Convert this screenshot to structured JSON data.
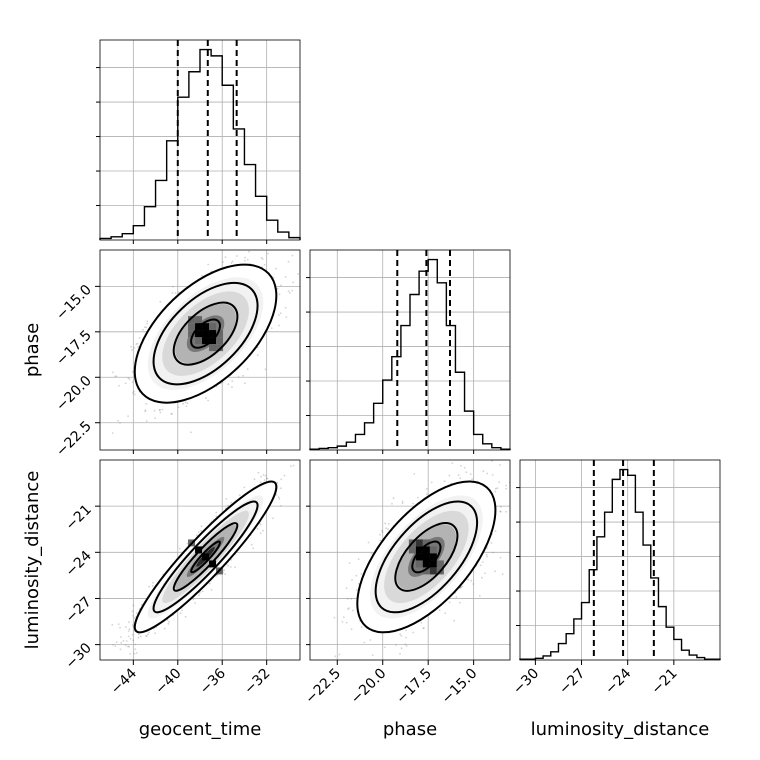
{
  "chart_data": {
    "type": "corner",
    "parameters": [
      "geocent_time",
      "phase",
      "luminosity_distance"
    ],
    "grid": true,
    "panels": {
      "hist_geocent_time": {
        "type": "histogram",
        "param": "geocent_time",
        "xlim": [
          -47,
          -29
        ],
        "bins": [
          -47,
          -46,
          -45,
          -44,
          -43,
          -42,
          -41,
          -40,
          -39,
          -38,
          -37,
          -36,
          -35,
          -34,
          -33,
          -32,
          -31,
          -30,
          -29
        ],
        "counts": [
          2,
          4,
          8,
          18,
          42,
          75,
          125,
          180,
          212,
          240,
          232,
          195,
          140,
          95,
          55,
          25,
          10,
          3
        ],
        "quantiles": [
          -40.0,
          -37.3,
          -34.7
        ]
      },
      "hist_phase": {
        "type": "histogram",
        "param": "phase",
        "xlim": [
          -24,
          -13
        ],
        "bins": [
          -24,
          -23.5,
          -23,
          -22.5,
          -22,
          -21.5,
          -21,
          -20.5,
          -20,
          -19.5,
          -19,
          -18.5,
          -18,
          -17.5,
          -17,
          -16.5,
          -16,
          -15.5,
          -15,
          -14.5,
          -14,
          -13.5,
          -13
        ],
        "counts": [
          1,
          2,
          3,
          5,
          10,
          20,
          35,
          60,
          90,
          120,
          160,
          200,
          230,
          245,
          215,
          160,
          100,
          50,
          20,
          8,
          3,
          1
        ],
        "quantiles": [
          -19.2,
          -17.6,
          -16.3
        ]
      },
      "hist_luminosity_distance": {
        "type": "histogram",
        "param": "luminosity_distance",
        "xlim": [
          -31,
          -18
        ],
        "bins": [
          -31,
          -30.5,
          -30,
          -29.5,
          -29,
          -28.5,
          -28,
          -27.5,
          -27,
          -26.5,
          -26,
          -25.5,
          -25,
          -24.5,
          -24,
          -23.5,
          -23,
          -22.5,
          -22,
          -21.5,
          -21,
          -20.5,
          -20,
          -19.5,
          -19,
          -18.5,
          -18
        ],
        "counts": [
          1,
          1,
          2,
          5,
          10,
          20,
          32,
          50,
          70,
          110,
          150,
          180,
          220,
          232,
          225,
          180,
          140,
          100,
          65,
          40,
          25,
          12,
          6,
          3,
          1,
          1
        ],
        "quantiles": [
          -26.2,
          -24.3,
          -22.3
        ]
      },
      "scatter_geocent_time_phase": {
        "x": "geocent_time",
        "y": "phase",
        "xlim": [
          -47,
          -29
        ],
        "ylim": [
          -24,
          -13
        ],
        "mean": [
          -37.5,
          -17.6
        ],
        "sd": [
          2.6,
          1.55
        ],
        "corr": 0.55
      },
      "scatter_geocent_time_luminosity_distance": {
        "x": "geocent_time",
        "y": "luminosity_distance",
        "xlim": [
          -47,
          -29
        ],
        "ylim": [
          -31,
          -18
        ],
        "mean": [
          -37.5,
          -24.3
        ],
        "sd": [
          2.6,
          2.0
        ],
        "corr": 0.93
      },
      "scatter_phase_luminosity_distance": {
        "x": "phase",
        "y": "luminosity_distance",
        "xlim": [
          -24,
          -13
        ],
        "ylim": [
          -31,
          -18
        ],
        "mean": [
          -17.6,
          -24.3
        ],
        "sd": [
          1.55,
          2.0
        ],
        "corr": 0.62
      }
    },
    "ticks": {
      "geocent_time": [
        "−44",
        "−40",
        "−36",
        "−32"
      ],
      "geocent_time_values": [
        -44,
        -40,
        -36,
        -32
      ],
      "phase": [
        "−22.5",
        "−20.0",
        "−17.5",
        "−15.0"
      ],
      "phase_values": [
        -22.5,
        -20.0,
        -17.5,
        -15.0
      ],
      "luminosity_distance": [
        "−30",
        "−27",
        "−24",
        "−21"
      ],
      "luminosity_distance_values": [
        -30,
        -27,
        -24,
        -21
      ]
    },
    "labels": {
      "x": [
        "geocent_time",
        "phase",
        "luminosity_distance"
      ],
      "y": [
        "phase",
        "luminosity_distance"
      ]
    }
  }
}
